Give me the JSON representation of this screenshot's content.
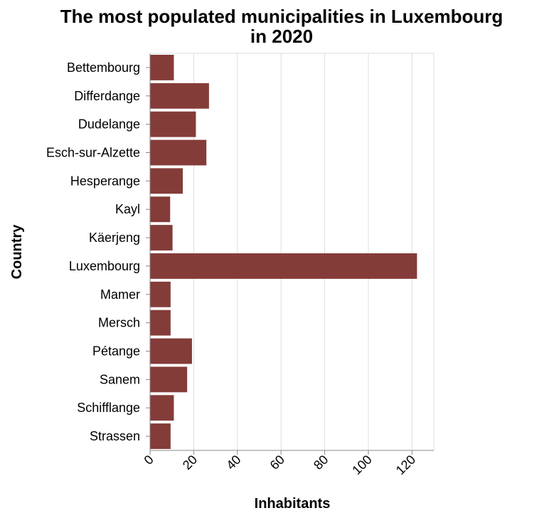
{
  "chart_data": {
    "type": "bar",
    "orientation": "horizontal",
    "title": "The most populated municipalities in Luxembourg in 2020",
    "xlabel": "Inhabitants",
    "ylabel": "Country",
    "categories": [
      "Bettembourg",
      "Differdange",
      "Dudelange",
      "Esch-sur-Alzette",
      "Hesperange",
      "Kayl",
      "Käerjeng",
      "Luxembourg",
      "Mamer",
      "Mersch",
      "Pétange",
      "Sanem",
      "Schifflange",
      "Strassen"
    ],
    "values": [
      10.9,
      27.0,
      21.0,
      25.8,
      15.0,
      9.2,
      10.3,
      122.3,
      9.4,
      9.4,
      19.2,
      17.0,
      10.9,
      9.4
    ],
    "xlim": [
      0,
      130
    ],
    "xticks": [
      0,
      20,
      40,
      60,
      80,
      100,
      120
    ],
    "grid": true,
    "bar_color": "#843c39"
  }
}
